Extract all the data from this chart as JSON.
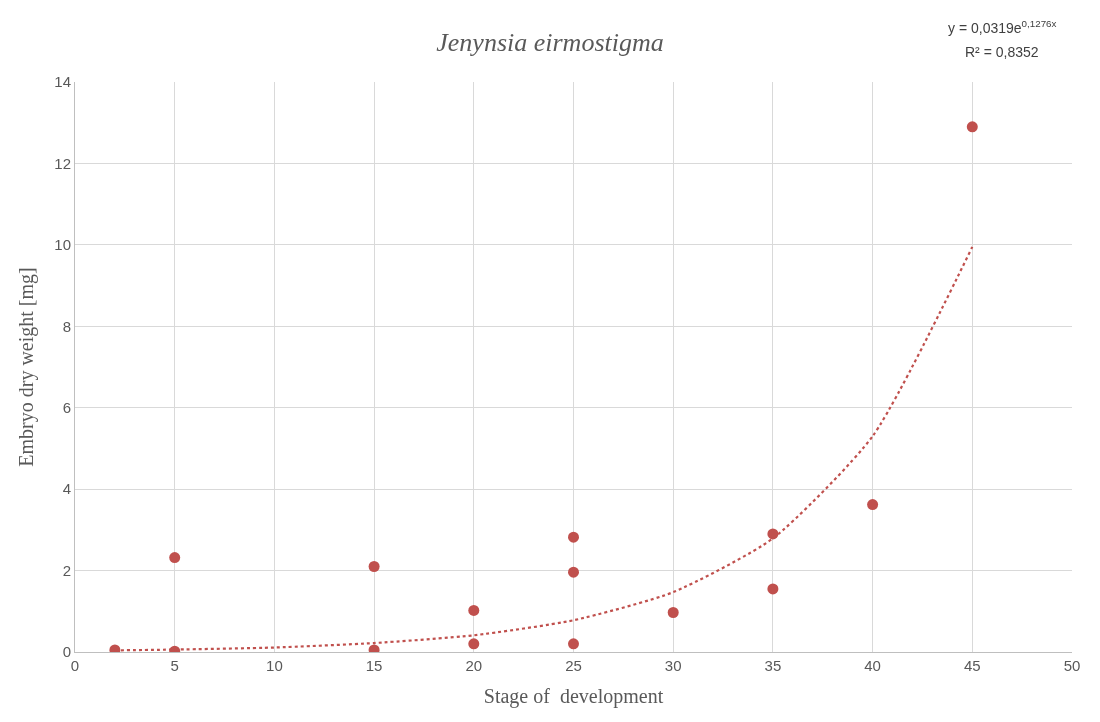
{
  "chart_data": {
    "type": "scatter",
    "title": "Jenynsia eirmostigma",
    "xlabel": "Stage of  development",
    "ylabel": "Embryo dry weight [mg]",
    "xlim": [
      0,
      50
    ],
    "xticks": [
      0,
      5,
      10,
      15,
      20,
      25,
      30,
      35,
      40,
      45,
      50
    ],
    "ylim": [
      0,
      14
    ],
    "yticks": [
      0,
      2,
      4,
      6,
      8,
      10,
      12,
      14
    ],
    "grid": true,
    "marker": "circle",
    "series": [
      {
        "color": "#c0504d",
        "x": [
          2,
          5,
          5,
          15,
          15,
          20,
          20,
          25,
          25,
          25,
          30,
          35,
          35,
          40,
          45
        ],
        "values": [
          0.05,
          2.32,
          0.02,
          2.1,
          0.05,
          1.02,
          0.2,
          2.82,
          1.96,
          0.2,
          0.97,
          2.9,
          1.55,
          3.62,
          12.9
        ]
      },
      {
        "type": "line",
        "color": "#c0504d",
        "line_style": "dotted",
        "marker": "none",
        "x": [
          2,
          5,
          10,
          15,
          20,
          25,
          30,
          35,
          40,
          45
        ],
        "values": [
          0.04,
          0.06,
          0.11,
          0.22,
          0.41,
          0.78,
          1.47,
          2.79,
          5.3,
          9.95
        ]
      }
    ],
    "annotations": [
      "y = 0,0319e$^{0,1276x}$",
      "R² = 0,8352"
    ]
  }
}
